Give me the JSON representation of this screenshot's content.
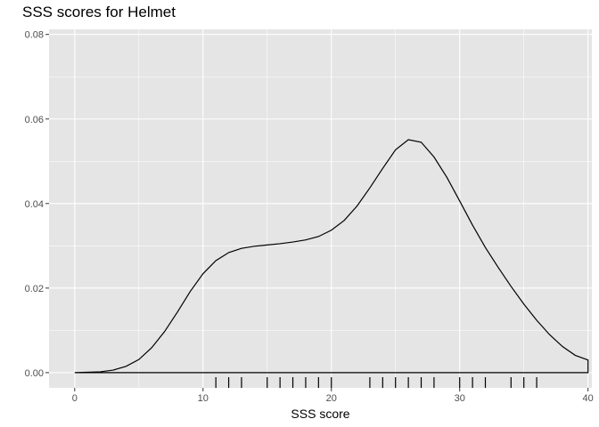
{
  "chart_data": {
    "type": "density",
    "title": "SSS scores for Helmet",
    "xlabel": "SSS score",
    "ylabel": "",
    "xlim": [
      -2,
      40.3
    ],
    "ylim": [
      -0.0036,
      0.0812
    ],
    "x_ticks": [
      0,
      10,
      20,
      30,
      40
    ],
    "y_ticks": [
      0.0,
      0.02,
      0.04,
      0.06,
      0.08
    ],
    "y_tick_labels": [
      "0.00",
      "0.02",
      "0.04",
      "0.06",
      "0.08"
    ],
    "grid": true,
    "legend": "none",
    "density_curve": {
      "x": [
        0,
        2,
        3,
        4,
        5,
        6,
        7,
        8,
        9,
        10,
        11,
        12,
        13,
        14,
        15,
        16,
        17,
        18,
        19,
        20,
        21,
        22,
        23,
        24,
        25,
        26,
        27,
        28,
        29,
        30,
        31,
        32,
        33,
        34,
        35,
        36,
        37,
        38,
        39,
        40
      ],
      "y": [
        0.0,
        0.0002,
        0.0006,
        0.0015,
        0.0031,
        0.0059,
        0.0097,
        0.0143,
        0.0192,
        0.0234,
        0.0265,
        0.0284,
        0.0294,
        0.0299,
        0.0302,
        0.0305,
        0.0309,
        0.0314,
        0.0322,
        0.0337,
        0.036,
        0.0394,
        0.0437,
        0.0483,
        0.0527,
        0.0551,
        0.0545,
        0.051,
        0.0462,
        0.0406,
        0.0349,
        0.0296,
        0.0249,
        0.0204,
        0.0162,
        0.0124,
        0.009,
        0.0062,
        0.0041,
        0.003
      ]
    },
    "rug_x": [
      11,
      12,
      13,
      15,
      16,
      17,
      18,
      19,
      20,
      23,
      24,
      25,
      26,
      27,
      28,
      30,
      31,
      32,
      34,
      35,
      36
    ],
    "colors": {
      "panel": "#e5e5e5",
      "grid_major": "#ffffff",
      "line": "#000000",
      "tick_text": "#4d4d4d"
    }
  }
}
